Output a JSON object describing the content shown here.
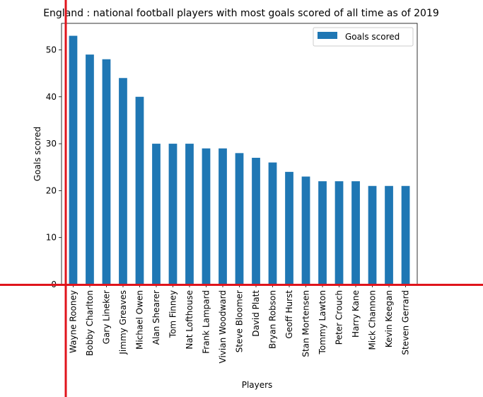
{
  "chart_data": {
    "type": "bar",
    "title": "England : national football players with most goals scored of all time as of 2019",
    "xlabel": "Players",
    "ylabel": "Goals scored",
    "ylim": [
      0,
      55.65
    ],
    "yticks": [
      0,
      10,
      20,
      30,
      40,
      50
    ],
    "legend_position": "top-right",
    "grid": false,
    "categories": [
      "Wayne Rooney",
      "Bobby Charlton",
      "Gary Lineker",
      "Jimmy Greaves",
      "Michael Owen",
      "Alan Shearer",
      "Tom Finney",
      "Nat Lofthouse",
      "Frank Lampard",
      "Vivian Woodward",
      "Steve Bloomer",
      "David Platt",
      "Bryan Robson",
      "Geoff Hurst",
      "Stan Mortensen",
      "Tommy Lawton",
      "Peter Crouch",
      "Harry Kane",
      "Mick Channon",
      "Kevin Keegan",
      "Steven Gerrard"
    ],
    "series": [
      {
        "name": "Goals scored",
        "color": "#1f77b4",
        "values": [
          53,
          49,
          48,
          44,
          40,
          30,
          30,
          30,
          29,
          29,
          28,
          27,
          26,
          24,
          23,
          22,
          22,
          22,
          21,
          21,
          21
        ]
      }
    ]
  },
  "overlay": {
    "line_color": "#e0141c"
  }
}
